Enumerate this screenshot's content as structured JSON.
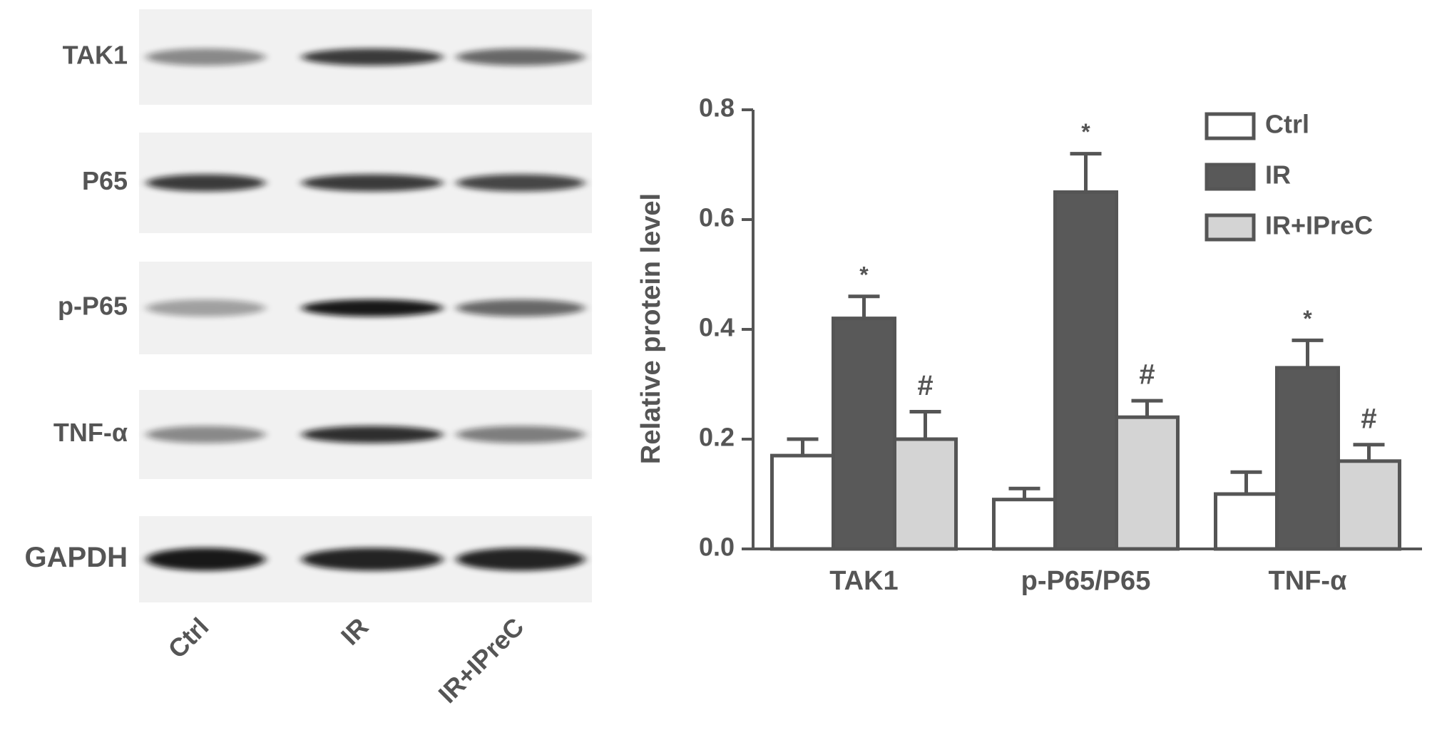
{
  "blot": {
    "rows": [
      "TAK1",
      "P65",
      "p-P65",
      "TNF-α",
      "GAPDH"
    ],
    "lanes": [
      "Ctrl",
      "IR",
      "IR+IPreC"
    ]
  },
  "chart_data": {
    "type": "bar",
    "y_label": "Relative protein level",
    "categories": [
      "TAK1",
      "p-P65/P65",
      "TNF-α"
    ],
    "series": [
      {
        "name": "Ctrl",
        "color": "#ffffff",
        "values": [
          0.17,
          0.09,
          0.1
        ],
        "errors": [
          0.03,
          0.02,
          0.04
        ]
      },
      {
        "name": "IR",
        "color": "#595959",
        "values": [
          0.42,
          0.65,
          0.33
        ],
        "errors": [
          0.04,
          0.07,
          0.05
        ],
        "markers": [
          "*",
          "*",
          "*"
        ]
      },
      {
        "name": "IR+IPreC",
        "color": "#d4d4d4",
        "values": [
          0.2,
          0.24,
          0.16
        ],
        "errors": [
          0.05,
          0.03,
          0.03
        ],
        "markers": [
          "#",
          "#",
          "#"
        ]
      }
    ],
    "ylim": [
      0,
      0.8
    ],
    "yticks": [
      {
        "value": 0,
        "label": "0.0"
      },
      0.2,
      0.4,
      0.6,
      0.8
    ],
    "legend": "upper right",
    "grid": false
  }
}
